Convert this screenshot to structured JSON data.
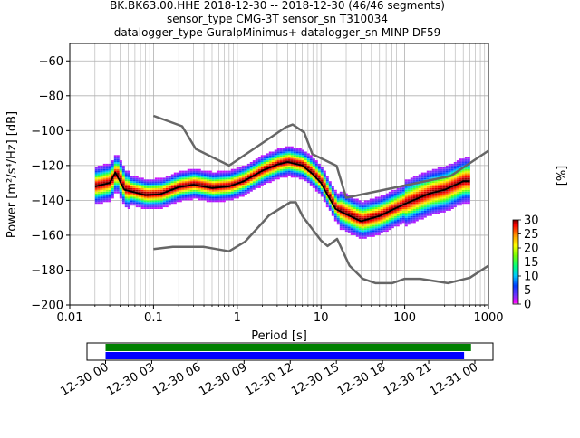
{
  "chart_data": [
    {
      "type": "heatmap",
      "title": [
        "BK.BK63.00.HHE   2018-12-30 -- 2018-12-30  (46/46 segments)",
        "sensor_type CMG-3T sensor_sn T310034",
        "datalogger_type GuralpMinimus+ datalogger_sn MINP-DF59"
      ],
      "xlabel": "Period [s]",
      "ylabel": "Power [m²/s⁴/Hz] [dB]",
      "x_scale": "log",
      "xlim": [
        0.01,
        1000
      ],
      "ylim": [
        -200,
        -50
      ],
      "x_ticks": [
        {
          "v": 0.01,
          "label": "0.01"
        },
        {
          "v": 0.1,
          "label": "0.1"
        },
        {
          "v": 1,
          "label": "1"
        },
        {
          "v": 10,
          "label": "10"
        },
        {
          "v": 100,
          "label": "100"
        },
        {
          "v": 1000,
          "label": "1000"
        }
      ],
      "y_ticks": [
        -200,
        -180,
        -160,
        -140,
        -120,
        -100,
        -80,
        -60
      ],
      "grid": true,
      "colorbar": {
        "label": "[%]",
        "ticks": [
          0,
          5,
          10,
          15,
          20,
          25,
          30
        ],
        "range": [
          0,
          30
        ]
      },
      "series": [
        {
          "name": "",
          "role": "high-noise-model",
          "color": "#666666",
          "points": [
            [
              0.1,
              -91.5
            ],
            [
              0.22,
              -97.5
            ],
            [
              0.32,
              -110.5
            ],
            [
              0.8,
              -120
            ],
            [
              3.8,
              -98
            ],
            [
              4.6,
              -96.5
            ],
            [
              6.3,
              -101
            ],
            [
              7.9,
              -113.5
            ],
            [
              15.4,
              -120.2
            ],
            [
              20,
              -138.5
            ],
            [
              354.8,
              -126
            ],
            [
              1000,
              -111.5
            ]
          ]
        },
        {
          "name": "",
          "role": "low-noise-model",
          "color": "#666666",
          "points": [
            [
              0.1,
              -168
            ],
            [
              0.17,
              -166.7
            ],
            [
              0.4,
              -166.7
            ],
            [
              0.8,
              -169.2
            ],
            [
              1.24,
              -163.7
            ],
            [
              2.4,
              -148.6
            ],
            [
              4.3,
              -141.1
            ],
            [
              5.0,
              -141.1
            ],
            [
              6.0,
              -149
            ],
            [
              10,
              -163
            ],
            [
              12,
              -166.2
            ],
            [
              15.6,
              -162.1
            ],
            [
              21.9,
              -177.5
            ],
            [
              31.6,
              -185
            ],
            [
              45,
              -187.5
            ],
            [
              70.8,
              -187.5
            ],
            [
              100,
              -185
            ],
            [
              154,
              -185
            ],
            [
              328,
              -187.5
            ],
            [
              600,
              -184.4
            ],
            [
              1000,
              -177.5
            ]
          ]
        },
        {
          "name": "",
          "role": "mode",
          "color": "#000000",
          "points": [
            [
              0.02,
              -132
            ],
            [
              0.03,
              -130
            ],
            [
              0.035,
              -124
            ],
            [
              0.045,
              -134
            ],
            [
              0.08,
              -137
            ],
            [
              0.12,
              -136.5
            ],
            [
              0.2,
              -132.5
            ],
            [
              0.3,
              -131
            ],
            [
              0.5,
              -133
            ],
            [
              0.8,
              -132
            ],
            [
              1.2,
              -129
            ],
            [
              2,
              -123
            ],
            [
              3,
              -119.5
            ],
            [
              4,
              -118
            ],
            [
              6,
              -120
            ],
            [
              8,
              -125
            ],
            [
              10,
              -130
            ],
            [
              12,
              -137
            ],
            [
              15,
              -145
            ],
            [
              20,
              -148
            ],
            [
              30,
              -152
            ],
            [
              50,
              -149
            ],
            [
              100,
              -142
            ],
            [
              200,
              -136
            ],
            [
              300,
              -134
            ],
            [
              500,
              -129
            ],
            [
              600,
              -129
            ]
          ]
        }
      ]
    },
    {
      "type": "timeline",
      "x_tick_labels": [
        "12-30 00",
        "12-30 03",
        "12-30 06",
        "12-30 09",
        "12-30 12",
        "12-30 15",
        "12-30 18",
        "12-30 21",
        "12-31 00"
      ],
      "bars": [
        {
          "color": "#008000",
          "start_hour": 0,
          "end_hour": 23.75
        },
        {
          "color": "#0000ff",
          "start_hour": 0,
          "end_hour": 23.3
        }
      ]
    }
  ]
}
